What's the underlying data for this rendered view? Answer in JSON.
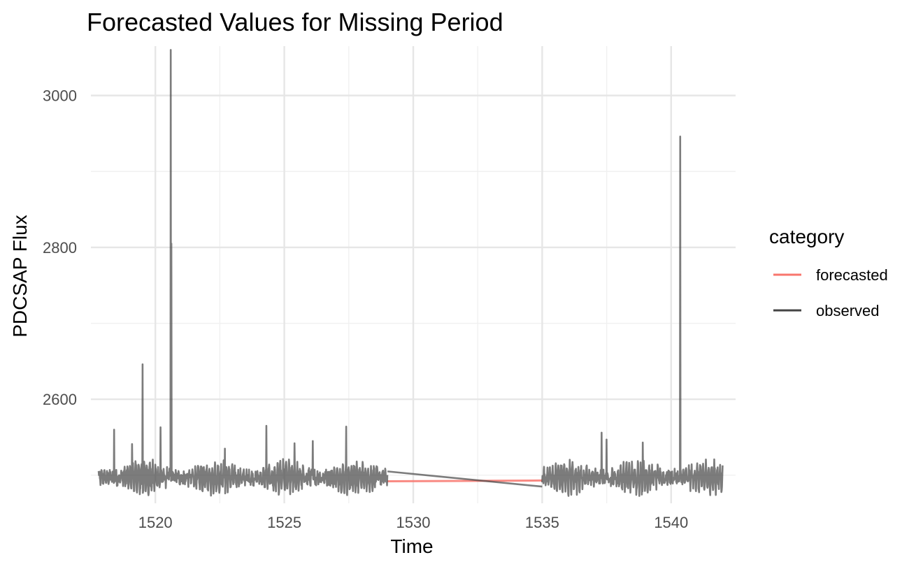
{
  "chart_data": {
    "type": "line",
    "title": "Forecasted Values for Missing Period",
    "xlabel": "Time",
    "ylabel": "PDCSAP Flux",
    "xlim": [
      1517.5,
      1542.5
    ],
    "ylim": [
      2463,
      3065
    ],
    "x_ticks": [
      1520,
      1525,
      1530,
      1535,
      1540
    ],
    "y_ticks": [
      2600,
      2800,
      3000
    ],
    "grid": true,
    "legend": {
      "title": "category",
      "position": "right",
      "entries": [
        {
          "label": "forecasted",
          "color": "#f8766d"
        },
        {
          "label": "observed",
          "color": "#444444"
        }
      ]
    },
    "series": [
      {
        "name": "observed",
        "color": "#444444",
        "opacity": 0.7,
        "segments": [
          {
            "x_range": [
              1517.8,
              1529.0
            ],
            "baseline": 2497,
            "amplitude": 18,
            "noise": 8,
            "spikes": [
              {
                "x": 1518.4,
                "y": 2560
              },
              {
                "x": 1519.1,
                "y": 2541
              },
              {
                "x": 1519.5,
                "y": 2646
              },
              {
                "x": 1520.2,
                "y": 2563
              },
              {
                "x": 1520.6,
                "y": 3060
              },
              {
                "x": 1520.62,
                "y": 2805
              },
              {
                "x": 1522.7,
                "y": 2535
              },
              {
                "x": 1524.3,
                "y": 2565
              },
              {
                "x": 1525.4,
                "y": 2542
              },
              {
                "x": 1526.1,
                "y": 2545
              },
              {
                "x": 1527.4,
                "y": 2564
              }
            ]
          },
          {
            "x_range": [
              1529.0,
              1535.0
            ],
            "values": [
              2505,
              2485
            ]
          },
          {
            "x_range": [
              1535.0,
              1542.0
            ],
            "baseline": 2497,
            "amplitude": 18,
            "noise": 8,
            "spikes": [
              {
                "x": 1537.3,
                "y": 2556
              },
              {
                "x": 1537.5,
                "y": 2547
              },
              {
                "x": 1538.9,
                "y": 2543
              },
              {
                "x": 1540.35,
                "y": 2946
              }
            ]
          }
        ]
      },
      {
        "name": "forecasted",
        "color": "#f8766d",
        "x": [
          1529.0,
          1535.0
        ],
        "values": [
          2492,
          2493
        ]
      }
    ]
  }
}
